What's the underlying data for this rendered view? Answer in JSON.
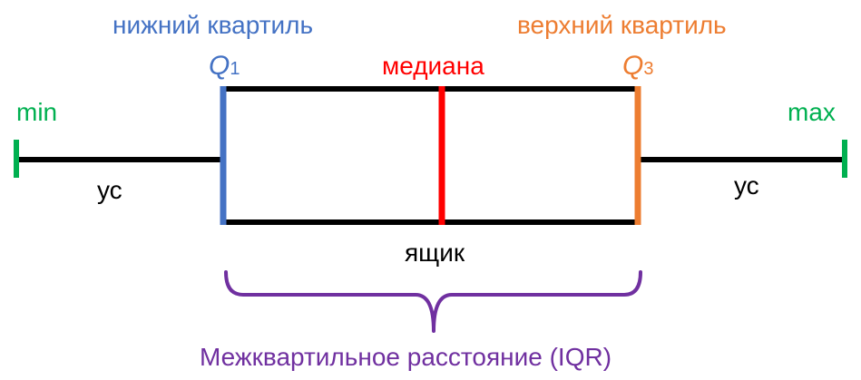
{
  "labels": {
    "lower_quartile": "нижний квартиль",
    "upper_quartile": "верхний квартиль",
    "q1_letter": "Q",
    "q1_sub": "1",
    "q3_letter": "Q",
    "q3_sub": "3",
    "median": "медиана",
    "min": "min",
    "max": "max",
    "whisker_left": "ус",
    "whisker_right": "ус",
    "box": "ящик",
    "iqr": "Межквартильное расстояние (IQR)"
  },
  "colors": {
    "lower": "#4472c4",
    "upper": "#ed7d31",
    "median": "#ff0000",
    "minmax": "#00b050",
    "iqr": "#7030a0",
    "lines": "#000000"
  }
}
